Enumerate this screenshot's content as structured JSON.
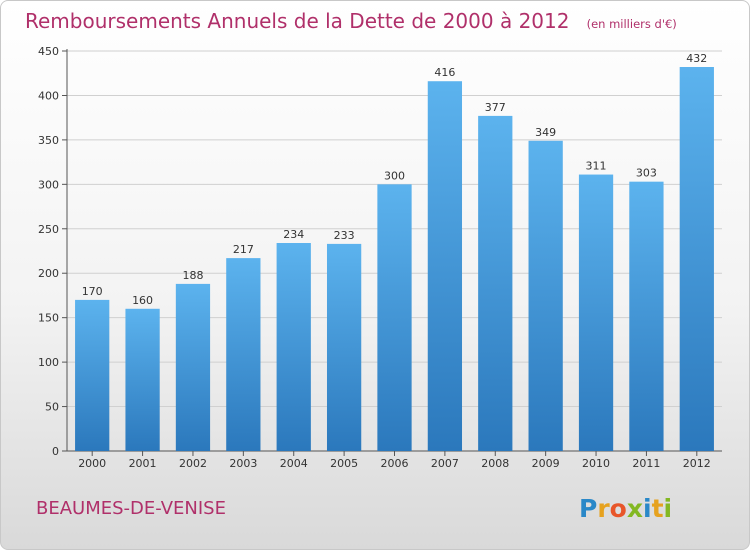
{
  "chart_data": {
    "type": "bar",
    "title": "Remboursements Annuels de la Dette de 2000 à 2012",
    "subtitle": "(en milliers d'€)",
    "categories": [
      "2000",
      "2001",
      "2002",
      "2003",
      "2004",
      "2005",
      "2006",
      "2007",
      "2008",
      "2009",
      "2010",
      "2011",
      "2012"
    ],
    "values": [
      170,
      160,
      188,
      217,
      234,
      233,
      300,
      416,
      377,
      349,
      311,
      303,
      432
    ],
    "value_labels": [
      "170",
      "160",
      "188",
      "217",
      "234",
      "233",
      "300",
      "416",
      "377",
      "349",
      "311",
      "303",
      "432"
    ],
    "ylim": [
      0,
      450
    ],
    "yticks": [
      "0",
      "50",
      "100",
      "150",
      "200",
      "250",
      "300",
      "350",
      "400",
      "450"
    ],
    "grid": true,
    "bar_color": "#4ea3e2",
    "title_color": "#b0306a"
  },
  "footer": {
    "location": "BEAUMES-DE-VENISE",
    "logo_letters": [
      "P",
      "r",
      "o",
      "x",
      "i",
      "t",
      "i"
    ],
    "logo_colors": [
      "#2a88c8",
      "#e6a21f",
      "#e8562a",
      "#83b822",
      "#2a88c8",
      "#e6a21f",
      "#83b822"
    ]
  }
}
